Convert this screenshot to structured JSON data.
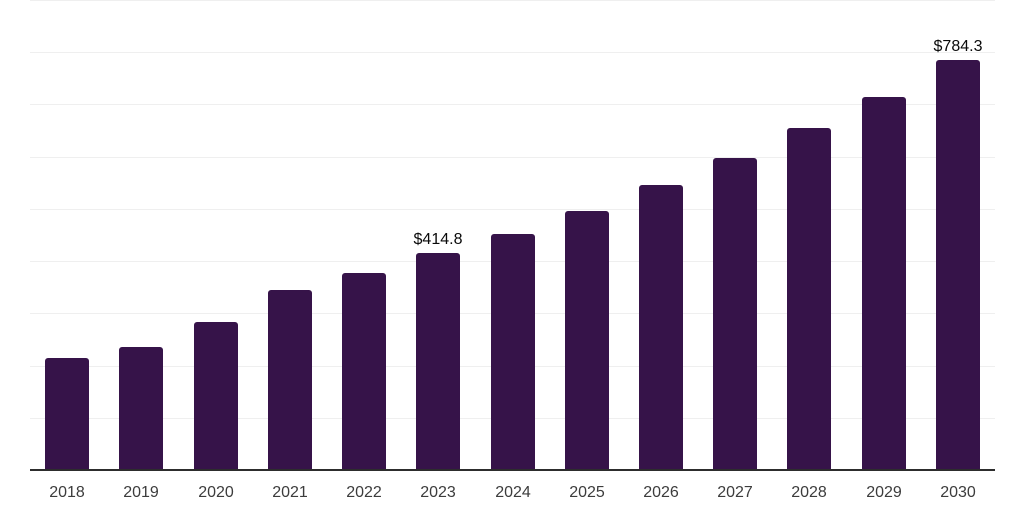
{
  "chart_data": {
    "type": "bar",
    "title": "",
    "xlabel": "",
    "ylabel": "",
    "categories": [
      "2018",
      "2019",
      "2020",
      "2021",
      "2022",
      "2023",
      "2024",
      "2025",
      "2026",
      "2027",
      "2028",
      "2029",
      "2030"
    ],
    "values": [
      214.0,
      235.5,
      283.4,
      344.7,
      377.2,
      414.8,
      452.3,
      496.6,
      545.7,
      598.0,
      654.9,
      714.3,
      784.3
    ],
    "value_labels": {
      "2023": "$414.8",
      "2030": "$784.3"
    },
    "ylim": [
      0,
      900
    ],
    "gridline_interval": 100,
    "grid": true,
    "legend": "none",
    "colors": {
      "bar": "#361349",
      "gridline": "#efefef",
      "axis_line": "#2d2d2d",
      "tick_label": "#3c3c3c",
      "value_label": "#0a0a0a",
      "background": "#ffffff"
    }
  }
}
